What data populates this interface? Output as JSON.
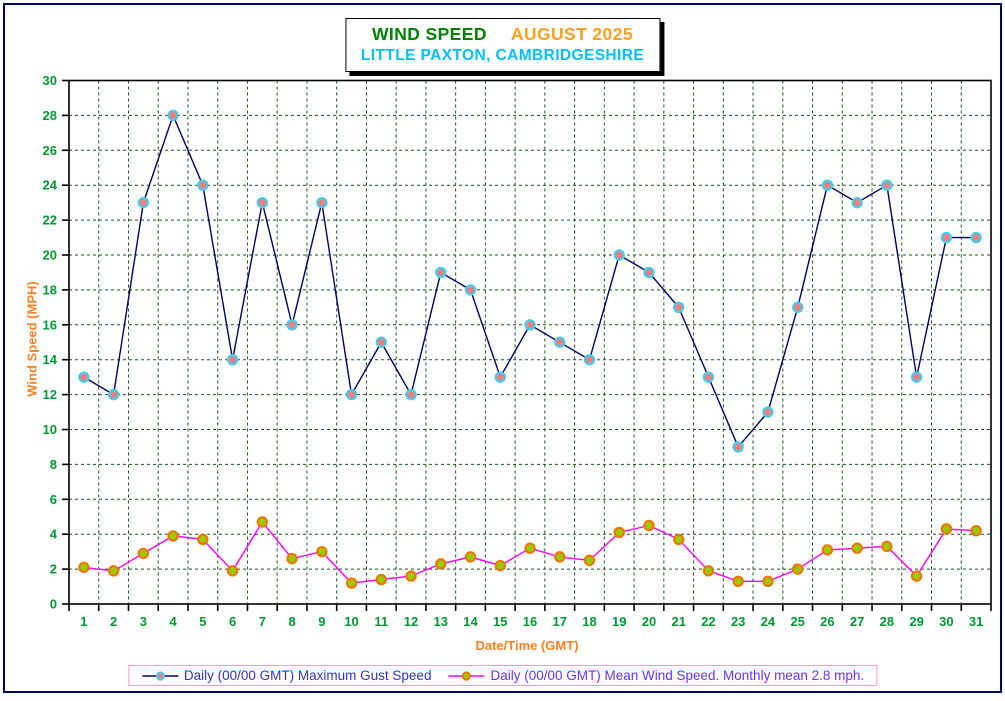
{
  "theme": {
    "frame-navy": "#000066",
    "title-green": "#008000",
    "title-orange": "#FFA020",
    "title-cyan": "#00BFFF",
    "axis-orange": "#FF8020",
    "tick-green": "#009933",
    "grid-green": "#1B511B",
    "plot-frame": "#000000",
    "legend-border": "#FF99CC"
  },
  "title": {
    "line1_left": "WIND SPEED",
    "line1_right": "AUGUST 2025",
    "line2": "LITTLE PAXTON, CAMBRIDGESHIRE"
  },
  "axes": {
    "y_label": "Wind Speed (MPH)",
    "x_label": "Date/Time (GMT)"
  },
  "legend": {
    "entries": [
      {
        "label": "Daily (00/00 GMT) Maximum Gust Speed",
        "text_color": "#3333CC",
        "line_color": "#000066",
        "marker_fill": "#F08080",
        "marker_stroke": "#44CCEE"
      },
      {
        "label": "Daily (00/00 GMT) Mean Wind Speed. Monthly mean 2.8 mph.",
        "text_color": "#6633FF",
        "line_color": "#FF00FF",
        "marker_fill": "#99CC00",
        "marker_stroke": "#EE7700"
      }
    ]
  },
  "chart_data": {
    "type": "line",
    "title": "WIND SPEED AUGUST 2025",
    "subtitle": "LITTLE PAXTON, CAMBRIDGESHIRE",
    "xlabel": "Date/Time (GMT)",
    "ylabel": "Wind Speed (MPH)",
    "ylim": [
      0,
      30
    ],
    "y_tick_step": 2,
    "y_ticks": [
      0,
      2,
      4,
      6,
      8,
      10,
      12,
      14,
      16,
      18,
      20,
      22,
      24,
      26,
      28,
      30
    ],
    "grid": "dashed dark-green horizontal every 2 MPH and vertical every day boundary",
    "legend_position": "bottom-center",
    "monthly_mean_mph": 2.8,
    "x": [
      1,
      2,
      3,
      4,
      5,
      6,
      7,
      8,
      9,
      10,
      11,
      12,
      13,
      14,
      15,
      16,
      17,
      18,
      19,
      20,
      21,
      22,
      23,
      24,
      25,
      26,
      27,
      28,
      29,
      30,
      31
    ],
    "series": [
      {
        "name": "Daily (00/00 GMT) Maximum Gust Speed",
        "line_color": "#000066",
        "marker_fill": "#F08080",
        "marker_stroke": "#44CCEE",
        "values": [
          13,
          12,
          23,
          28,
          24,
          14,
          23,
          16,
          23,
          12,
          15,
          12,
          19,
          18,
          13,
          16,
          15,
          14,
          20,
          19,
          17,
          13,
          9,
          11,
          17,
          24,
          23,
          24,
          13,
          21,
          21
        ]
      },
      {
        "name": "Daily (00/00 GMT) Mean Wind Speed",
        "line_color": "#FF00FF",
        "marker_fill": "#99CC00",
        "marker_stroke": "#EE7700",
        "values": [
          2.1,
          1.9,
          2.9,
          3.9,
          3.7,
          1.9,
          4.7,
          2.6,
          3.0,
          1.2,
          1.4,
          1.6,
          2.3,
          2.7,
          2.2,
          3.2,
          2.7,
          2.5,
          4.1,
          4.5,
          3.7,
          1.9,
          1.3,
          1.3,
          2.0,
          3.1,
          3.2,
          3.3,
          1.6,
          4.3,
          4.2
        ]
      }
    ]
  }
}
